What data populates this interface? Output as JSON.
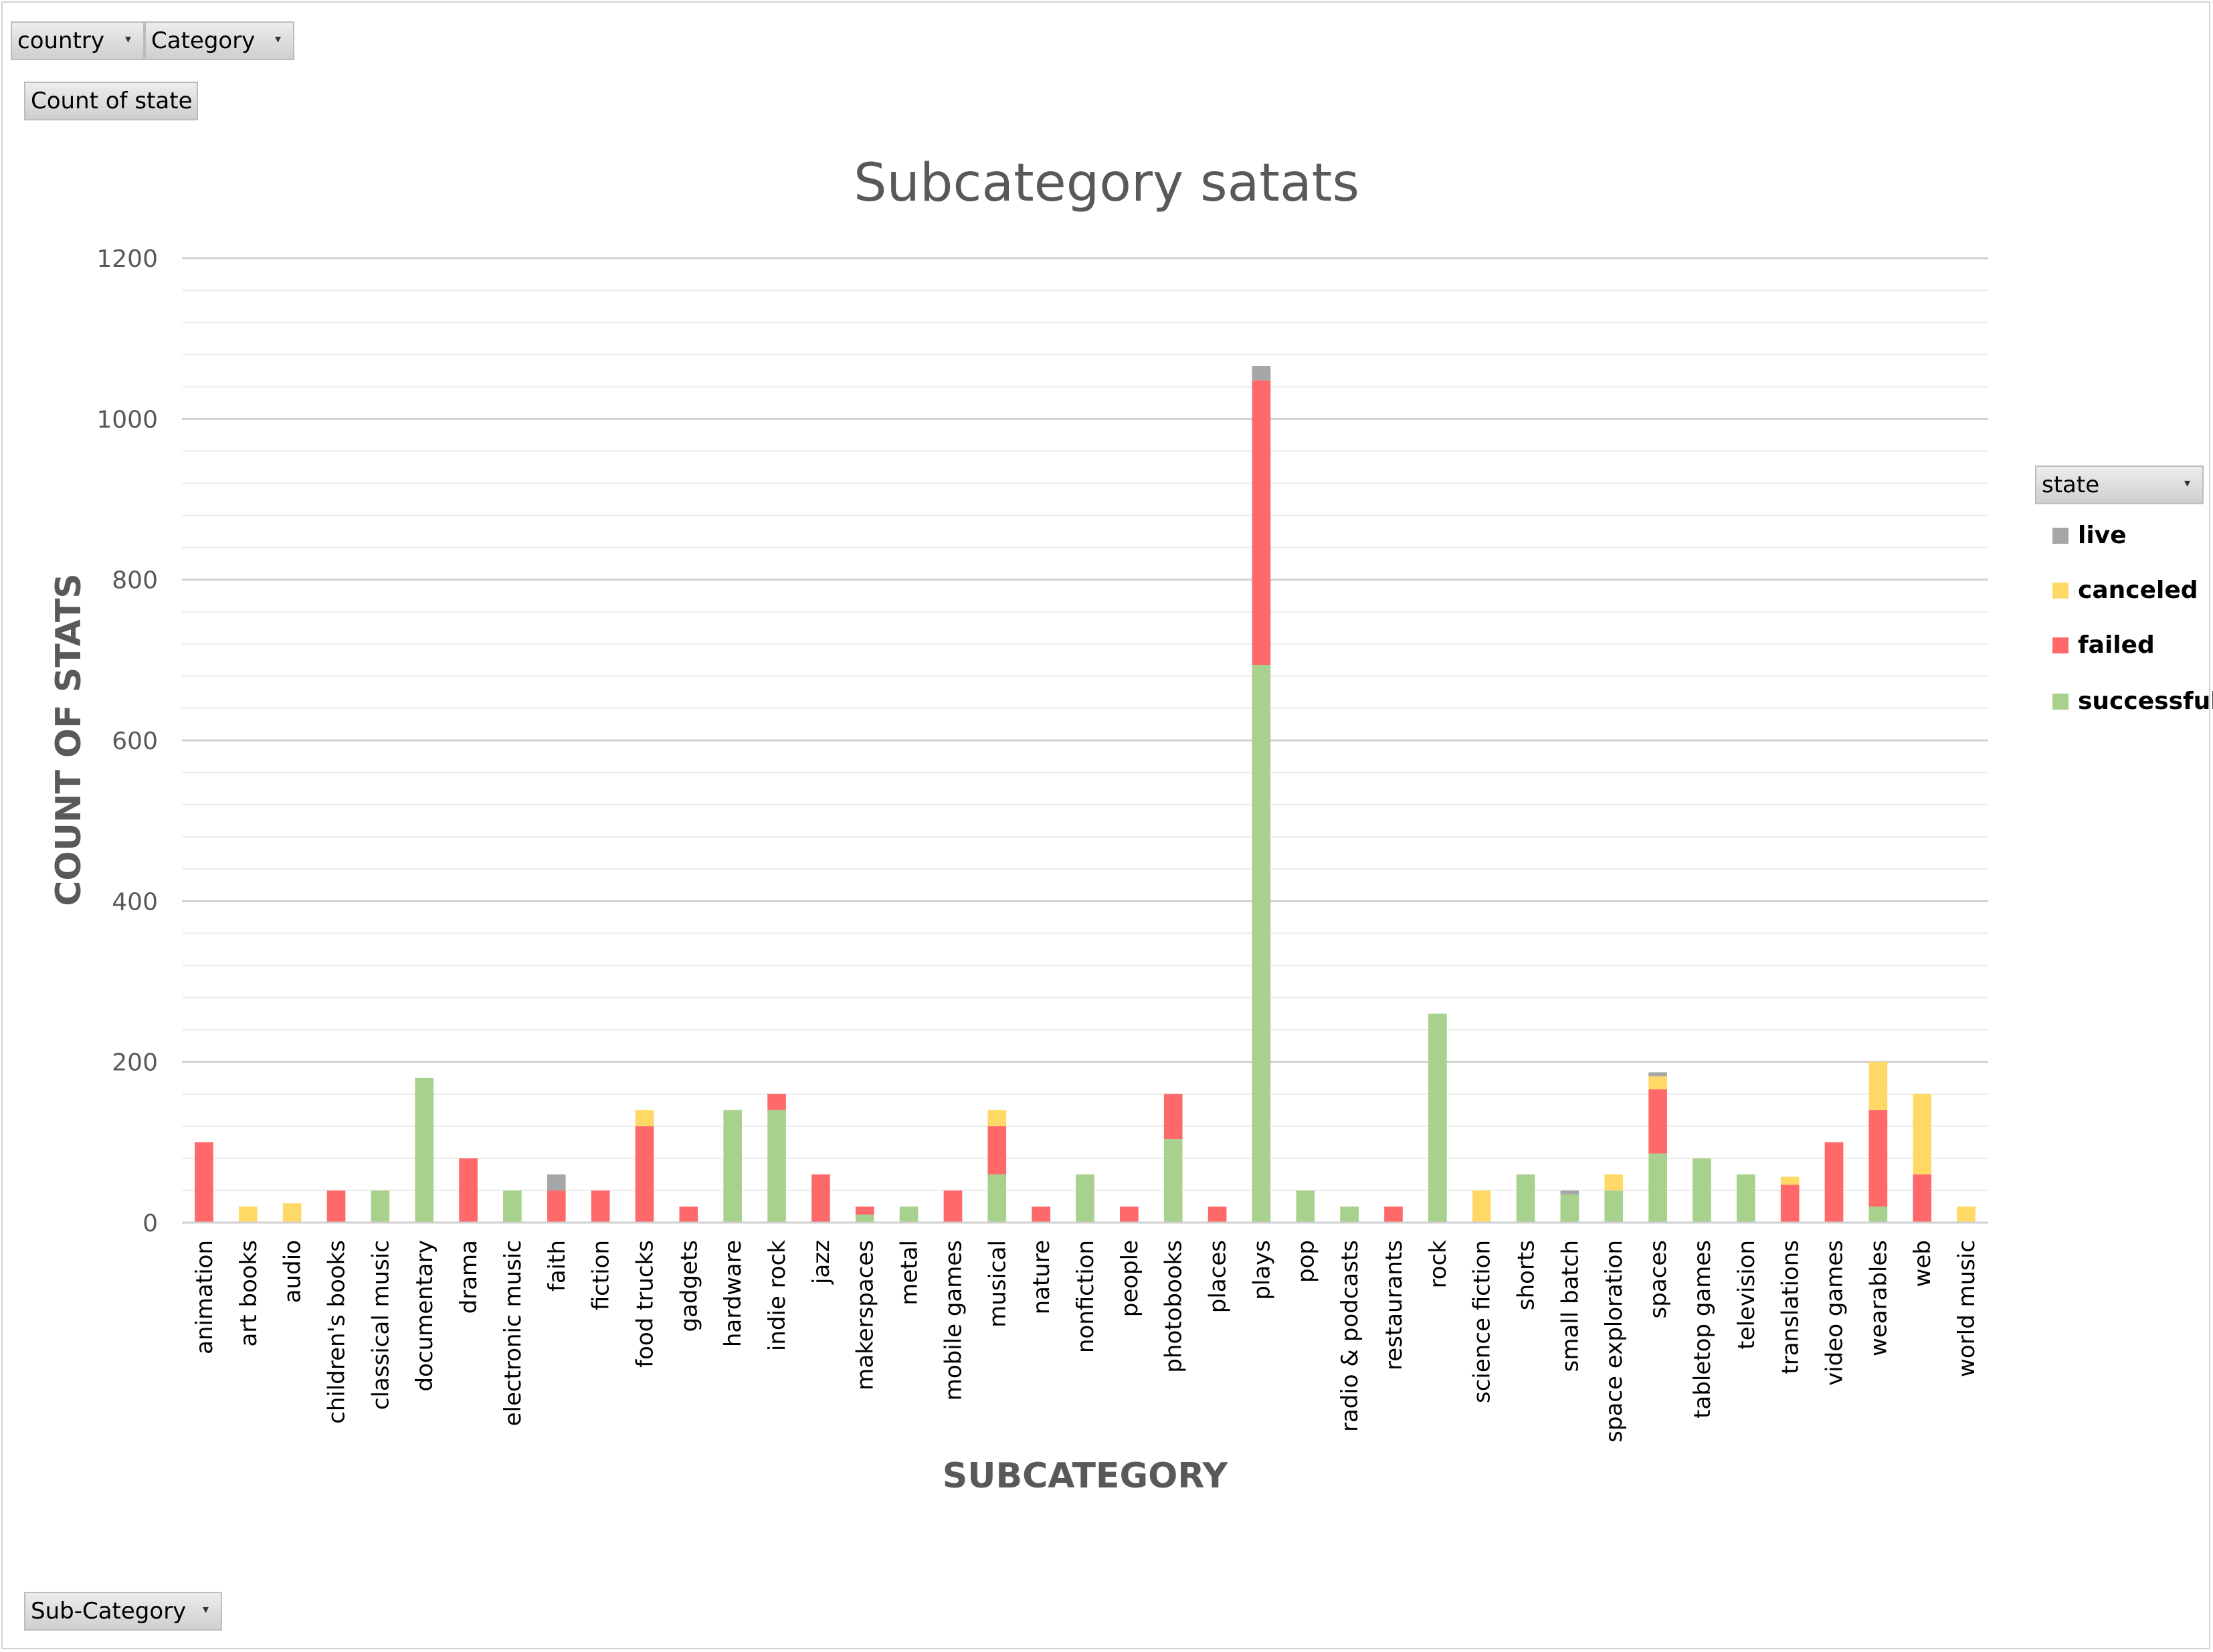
{
  "filters": {
    "country_label": "country",
    "category_label": "Category",
    "values_label": "Count of state",
    "axis_field_label": "Sub-Category",
    "legend_field_label": "state"
  },
  "colors": {
    "successful": "#a9d18e",
    "failed": "#ff6969",
    "canceled": "#ffd966",
    "live": "#a6a6a6",
    "gridline": "#d9d9d9",
    "text": "#595959"
  },
  "chart_data": {
    "type": "bar",
    "stacked": true,
    "title": "Subcategory satats",
    "xlabel": "SUBCATEGORY",
    "ylabel": "COUNT OF STATS",
    "ylim": [
      0,
      1200
    ],
    "yticks": [
      0,
      200,
      400,
      600,
      800,
      1000,
      1200
    ],
    "grid": true,
    "legend_position": "right",
    "categories": [
      "animation",
      "art books",
      "audio",
      "children's books",
      "classical music",
      "documentary",
      "drama",
      "electronic music",
      "faith",
      "fiction",
      "food trucks",
      "gadgets",
      "hardware",
      "indie rock",
      "jazz",
      "makerspaces",
      "metal",
      "mobile games",
      "musical",
      "nature",
      "nonfiction",
      "people",
      "photobooks",
      "places",
      "plays",
      "pop",
      "radio & podcasts",
      "restaurants",
      "rock",
      "science fiction",
      "shorts",
      "small batch",
      "space exploration",
      "spaces",
      "tabletop games",
      "television",
      "translations",
      "video games",
      "wearables",
      "web",
      "world music"
    ],
    "series": [
      {
        "name": "successful",
        "values": [
          0,
          0,
          0,
          0,
          40,
          180,
          0,
          40,
          0,
          0,
          0,
          0,
          140,
          140,
          0,
          10,
          20,
          0,
          60,
          0,
          60,
          0,
          104,
          0,
          694,
          40,
          20,
          0,
          260,
          0,
          60,
          35,
          40,
          86,
          80,
          60,
          0,
          0,
          20,
          0,
          0
        ]
      },
      {
        "name": "failed",
        "values": [
          100,
          0,
          0,
          40,
          0,
          0,
          80,
          0,
          40,
          40,
          120,
          20,
          0,
          20,
          60,
          10,
          0,
          40,
          60,
          20,
          0,
          20,
          56,
          20,
          354,
          0,
          0,
          20,
          0,
          0,
          0,
          0,
          0,
          80,
          0,
          0,
          47,
          100,
          120,
          60,
          0
        ]
      },
      {
        "name": "canceled",
        "values": [
          0,
          20,
          24,
          0,
          0,
          0,
          0,
          0,
          0,
          0,
          20,
          0,
          0,
          0,
          0,
          0,
          0,
          0,
          20,
          0,
          0,
          0,
          0,
          0,
          0,
          0,
          0,
          0,
          0,
          40,
          0,
          0,
          20,
          16,
          0,
          0,
          10,
          0,
          60,
          100,
          20
        ]
      },
      {
        "name": "live",
        "values": [
          0,
          0,
          0,
          0,
          0,
          0,
          0,
          0,
          20,
          0,
          0,
          0,
          0,
          0,
          0,
          0,
          0,
          0,
          0,
          0,
          0,
          0,
          0,
          0,
          18,
          0,
          0,
          0,
          0,
          0,
          0,
          5,
          0,
          5,
          0,
          0,
          0,
          0,
          0,
          0,
          0
        ]
      }
    ],
    "legend_order": [
      "live",
      "canceled",
      "failed",
      "successful"
    ]
  }
}
